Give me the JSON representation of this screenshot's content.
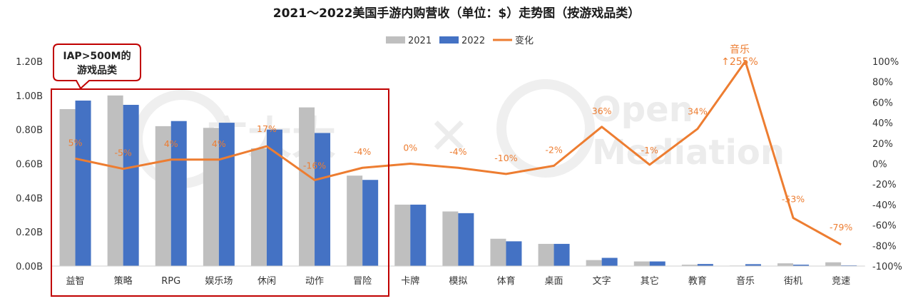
{
  "chart_data": {
    "type": "bar",
    "title": "2021～2022美国手游内购营收（单位：$）走势图（按游戏品类）",
    "categories": [
      "益智",
      "策略",
      "RPG",
      "娱乐场",
      "休闲",
      "动作",
      "冒险",
      "卡牌",
      "模拟",
      "体育",
      "桌面",
      "文字",
      "其它",
      "教育",
      "音乐",
      "街机",
      "竞速"
    ],
    "series": [
      {
        "name": "2021",
        "type": "bar",
        "color": "#BFBFBF",
        "values": [
          0.92,
          1.0,
          0.82,
          0.81,
          0.69,
          0.93,
          0.53,
          0.36,
          0.32,
          0.16,
          0.13,
          0.035,
          0.027,
          0.008,
          0.003,
          0.016,
          0.022
        ]
      },
      {
        "name": "2022",
        "type": "bar",
        "color": "#4472C4",
        "values": [
          0.97,
          0.945,
          0.85,
          0.84,
          0.8,
          0.78,
          0.505,
          0.36,
          0.31,
          0.145,
          0.13,
          0.048,
          0.027,
          0.012,
          0.011,
          0.008,
          0.004
        ]
      },
      {
        "name": "变化",
        "type": "line",
        "color": "#ED7D31",
        "values": [
          5,
          -5,
          4,
          4,
          17,
          -16,
          -4,
          0,
          -4,
          -10,
          -2,
          36,
          -1,
          34,
          255,
          -53,
          -79
        ],
        "labels": [
          "5%",
          "-5%",
          "4%",
          "4%",
          "17%",
          "-16%",
          "-4%",
          "0%",
          "-4%",
          "-10%",
          "-2%",
          "36%",
          "-1%",
          "34%",
          "↑255%",
          "-53%",
          "-79%"
        ]
      }
    ],
    "y_left": {
      "min": 0,
      "max": 1.2,
      "ticks": [
        "0.00B",
        "0.20B",
        "0.40B",
        "0.60B",
        "0.80B",
        "1.00B",
        "1.20B"
      ]
    },
    "y_right": {
      "min": -100,
      "max": 100,
      "ticks": [
        "-100%",
        "-80%",
        "-60%",
        "-40%",
        "-20%",
        "0%",
        "20%",
        "40%",
        "60%",
        "80%",
        "100%"
      ]
    },
    "legend_position": "top",
    "grid": false
  },
  "callout": {
    "line1": "IAP>500M的",
    "line2": "游戏品类",
    "highlight_count": 7
  },
  "music_annotation": {
    "line1": "音乐",
    "line2": "↑255%"
  },
  "watermarks": {
    "left": "广大大",
    "right_top": "Open",
    "right_bottom": "Mediation"
  },
  "colors": {
    "accent_box": "#C00000",
    "line": "#ED7D31",
    "bar_2021": "#BFBFBF",
    "bar_2022": "#4472C4"
  }
}
